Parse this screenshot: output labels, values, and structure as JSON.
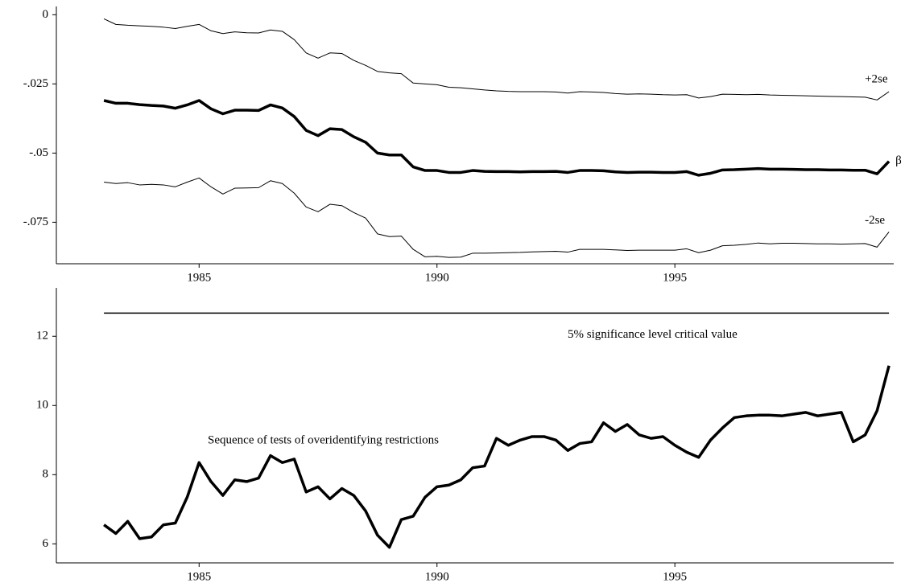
{
  "chart_data": [
    {
      "type": "line",
      "x": [
        1983,
        1983.25,
        1983.5,
        1983.75,
        1984,
        1984.25,
        1984.5,
        1984.75,
        1985,
        1985.25,
        1985.5,
        1985.75,
        1986,
        1986.25,
        1986.5,
        1986.75,
        1987,
        1987.25,
        1987.5,
        1987.75,
        1988,
        1988.25,
        1988.5,
        1988.75,
        1989,
        1989.25,
        1989.5,
        1989.75,
        1990,
        1990.25,
        1990.5,
        1990.75,
        1991,
        1991.25,
        1991.5,
        1991.75,
        1992,
        1992.25,
        1992.5,
        1992.75,
        1993,
        1993.25,
        1993.5,
        1993.75,
        1994,
        1994.25,
        1994.5,
        1994.75,
        1995,
        1995.25,
        1995.5,
        1995.75,
        1996,
        1996.25,
        1996.5,
        1996.75,
        1997,
        1997.25,
        1997.5,
        1997.75,
        1998,
        1998.25,
        1998.5,
        1998.75,
        1999,
        1999.25,
        1999.5
      ],
      "series": [
        {
          "name": "+2se",
          "color": "#000000",
          "linewidth": 1,
          "values": [
            -0.0015,
            -0.0035,
            -0.0038,
            -0.004,
            -0.0042,
            -0.0045,
            -0.005,
            -0.0042,
            -0.0035,
            -0.0058,
            -0.0068,
            -0.0062,
            -0.0065,
            -0.0066,
            -0.0055,
            -0.006,
            -0.009,
            -0.0138,
            -0.0157,
            -0.0138,
            -0.014,
            -0.0165,
            -0.0183,
            -0.0205,
            -0.021,
            -0.0213,
            -0.0247,
            -0.025,
            -0.0253,
            -0.0262,
            -0.0264,
            -0.0268,
            -0.0272,
            -0.0275,
            -0.0277,
            -0.0278,
            -0.0278,
            -0.0278,
            -0.0279,
            -0.0283,
            -0.0278,
            -0.0279,
            -0.0281,
            -0.0285,
            -0.0287,
            -0.0286,
            -0.0287,
            -0.0289,
            -0.029,
            -0.0289,
            -0.0301,
            -0.0296,
            -0.0287,
            -0.0288,
            -0.0289,
            -0.0288,
            -0.029,
            -0.0291,
            -0.0292,
            -0.0293,
            -0.0294,
            -0.0295,
            -0.0296,
            -0.0297,
            -0.0298,
            -0.0308,
            -0.0278
          ]
        },
        {
          "name": "β",
          "color": "#000000",
          "linewidth": 3.5,
          "values": [
            -0.031,
            -0.032,
            -0.032,
            -0.0325,
            -0.0328,
            -0.033,
            -0.0338,
            -0.0326,
            -0.031,
            -0.034,
            -0.0358,
            -0.0345,
            -0.0345,
            -0.0346,
            -0.0326,
            -0.0337,
            -0.0368,
            -0.0418,
            -0.0437,
            -0.0412,
            -0.0415,
            -0.0441,
            -0.0461,
            -0.05,
            -0.0507,
            -0.0507,
            -0.055,
            -0.0563,
            -0.0563,
            -0.057,
            -0.057,
            -0.0563,
            -0.0566,
            -0.0567,
            -0.0567,
            -0.0568,
            -0.0567,
            -0.0567,
            -0.0566,
            -0.057,
            -0.0563,
            -0.0563,
            -0.0564,
            -0.0568,
            -0.057,
            -0.0569,
            -0.0569,
            -0.057,
            -0.057,
            -0.0567,
            -0.058,
            -0.0573,
            -0.0561,
            -0.056,
            -0.0558,
            -0.0556,
            -0.0558,
            -0.0558,
            -0.0559,
            -0.056,
            -0.056,
            -0.0561,
            -0.0561,
            -0.0562,
            -0.0562,
            -0.0575,
            -0.053
          ]
        },
        {
          "name": "-2se",
          "color": "#000000",
          "linewidth": 1,
          "values": [
            -0.0605,
            -0.061,
            -0.0607,
            -0.0615,
            -0.0613,
            -0.0615,
            -0.0622,
            -0.0605,
            -0.059,
            -0.0622,
            -0.0648,
            -0.0627,
            -0.0626,
            -0.0625,
            -0.06,
            -0.061,
            -0.0645,
            -0.0695,
            -0.0712,
            -0.0685,
            -0.069,
            -0.0715,
            -0.0735,
            -0.0792,
            -0.0802,
            -0.08,
            -0.0848,
            -0.0875,
            -0.0873,
            -0.0877,
            -0.0876,
            -0.0862,
            -0.0862,
            -0.0861,
            -0.086,
            -0.0859,
            -0.0857,
            -0.0856,
            -0.0855,
            -0.0858,
            -0.0848,
            -0.0848,
            -0.0848,
            -0.085,
            -0.0852,
            -0.0851,
            -0.0851,
            -0.0851,
            -0.0851,
            -0.0846,
            -0.086,
            -0.0851,
            -0.0835,
            -0.0833,
            -0.083,
            -0.0825,
            -0.0828,
            -0.0826,
            -0.0826,
            -0.0827,
            -0.0828,
            -0.0828,
            -0.0829,
            -0.0828,
            -0.0827,
            -0.084,
            -0.0785
          ]
        }
      ],
      "xlim": [
        1982,
        1999.6
      ],
      "xticks": [
        1985,
        1990,
        1995
      ],
      "ylim": [
        -0.09,
        0.003
      ],
      "yticks": [
        {
          "value": -0.075,
          "label": "-.075"
        },
        {
          "value": -0.05,
          "label": "-.05"
        },
        {
          "value": -0.025,
          "label": "-.025"
        },
        0
      ]
    },
    {
      "type": "line",
      "x": [
        1983,
        1983.25,
        1983.5,
        1983.75,
        1984,
        1984.25,
        1984.5,
        1984.75,
        1985,
        1985.25,
        1985.5,
        1985.75,
        1986,
        1986.25,
        1986.5,
        1986.75,
        1987,
        1987.25,
        1987.5,
        1987.75,
        1988,
        1988.25,
        1988.5,
        1988.75,
        1989,
        1989.25,
        1989.5,
        1989.75,
        1990,
        1990.25,
        1990.5,
        1990.75,
        1991,
        1991.25,
        1991.5,
        1991.75,
        1992,
        1992.25,
        1992.5,
        1992.75,
        1993,
        1993.25,
        1993.5,
        1993.75,
        1994,
        1994.25,
        1994.5,
        1994.75,
        1995,
        1995.25,
        1995.5,
        1995.75,
        1996,
        1996.25,
        1996.5,
        1996.75,
        1997,
        1997.25,
        1997.5,
        1997.75,
        1998,
        1998.25,
        1998.5,
        1998.75,
        1999,
        1999.25,
        1999.5
      ],
      "series": [
        {
          "name": "Sequence of tests of overidentifying restrictions",
          "color": "#000000",
          "linewidth": 3.5,
          "values": [
            6.55,
            6.3,
            6.65,
            6.15,
            6.2,
            6.55,
            6.6,
            7.35,
            8.35,
            7.8,
            7.4,
            7.85,
            7.8,
            7.9,
            8.55,
            8.35,
            8.45,
            7.5,
            7.65,
            7.3,
            7.6,
            7.4,
            6.95,
            6.25,
            5.9,
            6.7,
            6.8,
            7.35,
            7.65,
            7.7,
            7.85,
            8.2,
            8.25,
            9.05,
            8.85,
            9.0,
            9.1,
            9.1,
            9.0,
            8.7,
            8.9,
            8.95,
            9.5,
            9.25,
            9.45,
            9.15,
            9.05,
            9.1,
            8.85,
            8.65,
            8.5,
            9.0,
            9.35,
            9.65,
            9.7,
            9.72,
            9.72,
            9.7,
            9.75,
            9.8,
            9.7,
            9.75,
            9.8,
            8.95,
            9.15,
            9.85,
            11.15
          ]
        }
      ],
      "critical_value": 12.67,
      "critical_label": "5% significance level critical value",
      "xlim": [
        1982,
        1999.6
      ],
      "xticks": [
        1985,
        1990,
        1995
      ],
      "ylim": [
        5.45,
        13.4
      ],
      "yticks": [
        6,
        8,
        10,
        12
      ]
    }
  ]
}
